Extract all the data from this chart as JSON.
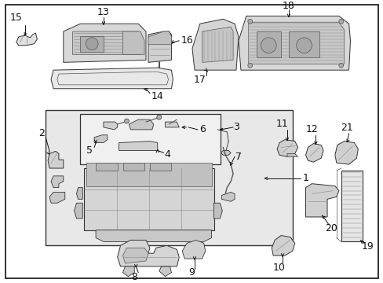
{
  "bg": "#ffffff",
  "fw": 4.89,
  "fh": 3.6,
  "dpi": 100,
  "gray1": "#cccccc",
  "gray2": "#999999",
  "gray3": "#666666",
  "gray4": "#444444",
  "gray5": "#222222",
  "hatching": "#bbbbbb"
}
